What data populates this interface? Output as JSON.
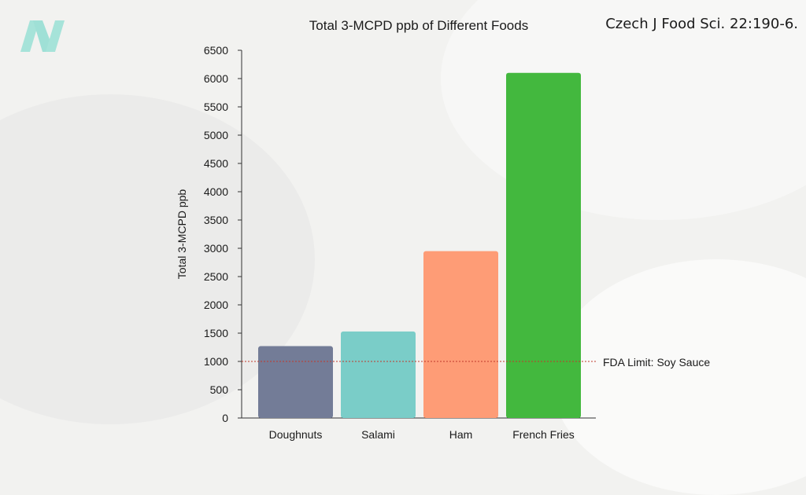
{
  "logo": {
    "icon": "n-logo-icon",
    "color": "#9fe0d6"
  },
  "source_note": "Czech J Food Sci. 22:190-6.",
  "chart_data": {
    "type": "bar",
    "title": "Total 3-MCPD ppb of Different Foods",
    "xlabel": "",
    "ylabel": "Total 3-MCPD ppb",
    "categories": [
      "Doughnuts",
      "Salami",
      "Ham",
      "French Fries"
    ],
    "values": [
      1270,
      1530,
      2950,
      6100
    ],
    "colors": [
      "#737c97",
      "#7acdc8",
      "#fe9c76",
      "#43b83e"
    ],
    "ylim": [
      0,
      6500
    ],
    "yticks": [
      0,
      500,
      1000,
      1500,
      2000,
      2500,
      3000,
      3500,
      4000,
      4500,
      5000,
      5500,
      6000,
      6500
    ],
    "grid": false,
    "reference_line": {
      "value": 1000,
      "label": "FDA Limit: Soy Sauce",
      "color": "#c0392b",
      "style": "dotted"
    }
  }
}
